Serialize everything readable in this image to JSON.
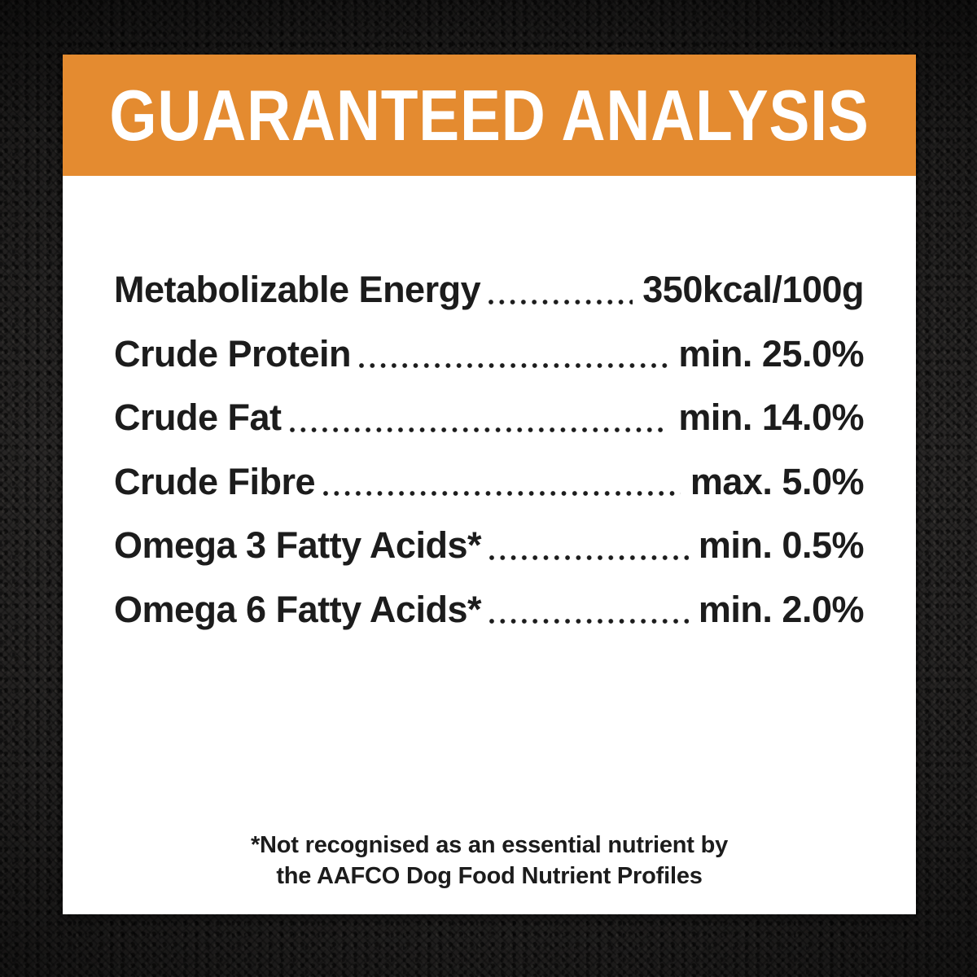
{
  "header": {
    "title": "GUARANTEED ANALYSIS"
  },
  "analysis": {
    "rows": [
      {
        "label": "Metabolizable Energy",
        "value": "350kcal/100g"
      },
      {
        "label": "Crude Protein",
        "value": "min. 25.0%"
      },
      {
        "label": "Crude Fat",
        "value": "min. 14.0%"
      },
      {
        "label": "Crude Fibre",
        "value": "max. 5.0%"
      },
      {
        "label": "Omega 3 Fatty Acids*",
        "value": "min. 0.5%"
      },
      {
        "label": "Omega 6 Fatty Acids*",
        "value": "min. 2.0%"
      }
    ]
  },
  "footnote": {
    "line1": "*Not recognised as an essential nutrient by",
    "line2": "the AAFCO Dog Food Nutrient Profiles"
  },
  "colors": {
    "accent_orange": "#e48b30",
    "card_white": "#ffffff",
    "text_dark": "#1c1c1c",
    "background_fabric_dark": "#2e2c2b"
  }
}
